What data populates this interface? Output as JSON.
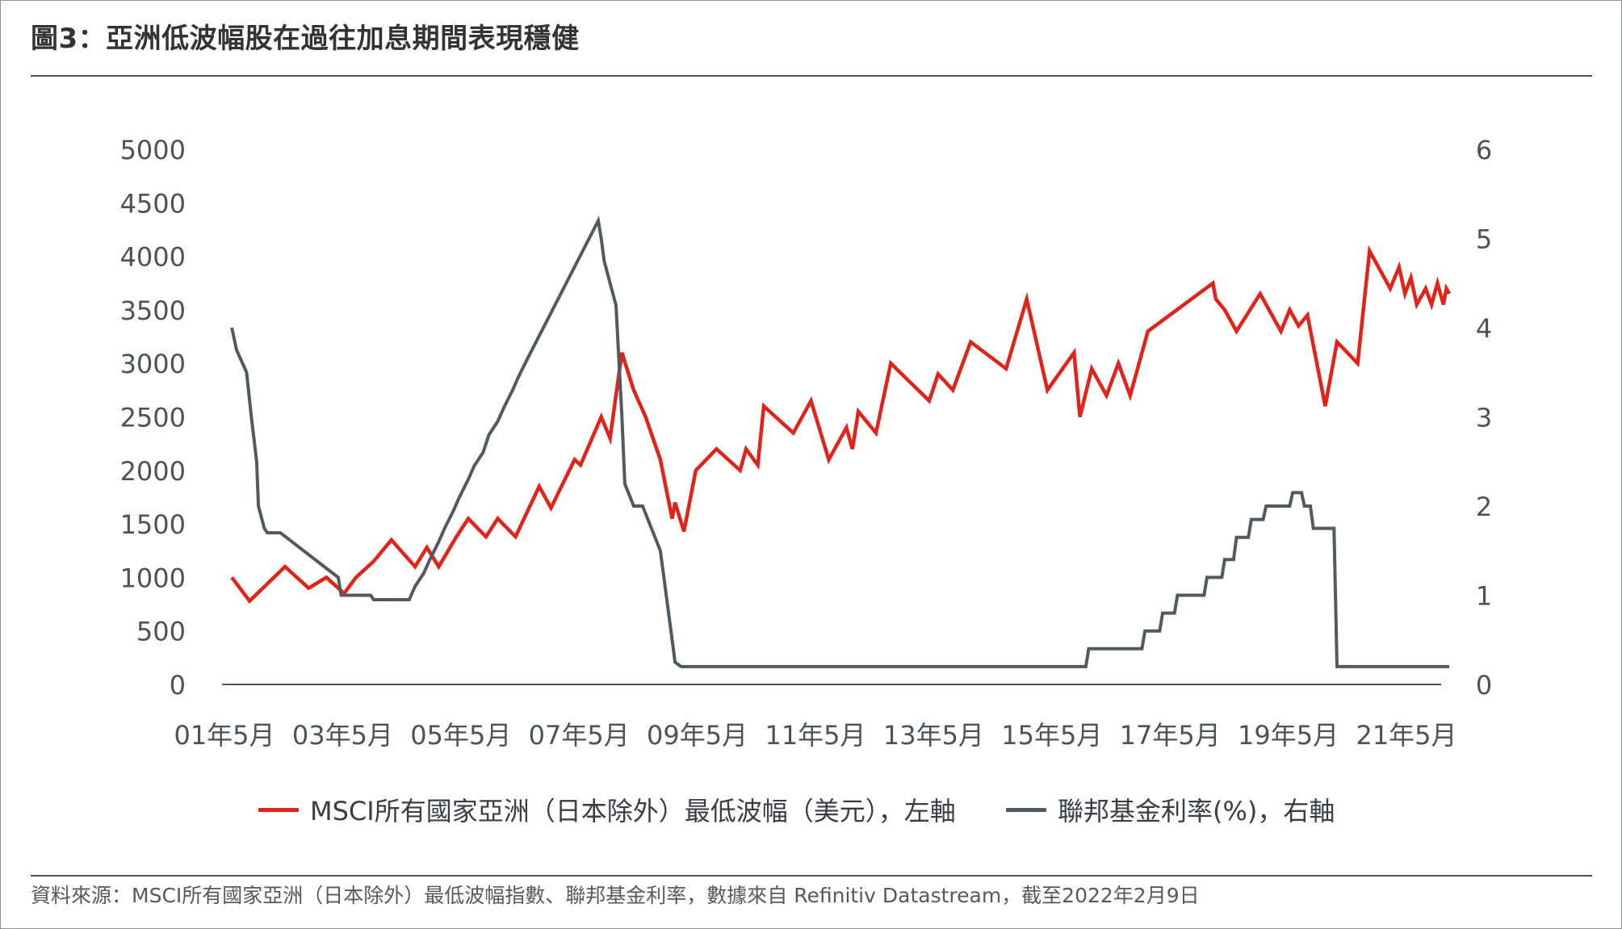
{
  "header": {
    "title": "圖3：亞洲低波幅股在過往加息期間表現穩健"
  },
  "colors": {
    "msci": "#e2231a",
    "fed": "#505a61",
    "axis": "#4d5256",
    "text": "#4d5256"
  },
  "legend": {
    "msci": "MSCI所有國家亞洲（日本除外）最低波幅（美元），左軸",
    "fed": "聯邦基金利率(%)，右軸"
  },
  "footer": {
    "source": "資料來源：MSCI所有國家亞洲（日本除外）最低波幅指數、聯邦基金利率，數據來自 Refinitiv Datastream，截至2022年2月9日"
  },
  "chart_data": {
    "type": "line",
    "title": "圖3：亞洲低波幅股在過往加息期間表現穩健",
    "xlabel": "",
    "ylabel_left": "",
    "ylabel_right": "",
    "x_tick_labels": [
      "01年5月",
      "03年5月",
      "05年5月",
      "07年5月",
      "09年5月",
      "11年5月",
      "13年5月",
      "15年5月",
      "17年5月",
      "19年5月",
      "21年5月"
    ],
    "x_tick_positions": [
      2001.375,
      2003.375,
      2005.375,
      2007.375,
      2009.375,
      2011.375,
      2013.375,
      2015.375,
      2017.375,
      2019.375,
      2021.375
    ],
    "xlim": [
      2001.5,
      2022.1
    ],
    "y_left_ticks": [
      "0",
      "500",
      "1000",
      "1500",
      "2000",
      "2500",
      "3000",
      "3500",
      "4000",
      "4500",
      "5000"
    ],
    "ylim_left": [
      0,
      5000
    ],
    "y_right_ticks": [
      "0",
      "1",
      "2",
      "3",
      "4",
      "5",
      "6"
    ],
    "ylim_right": [
      0,
      6
    ],
    "grid": false,
    "legend_position": "bottom",
    "series": [
      {
        "name": "MSCI所有國家亞洲（日本除外）最低波幅（美元），左軸",
        "axis": "left",
        "x": [
          2001.5,
          2001.8,
          2002.4,
          2002.8,
          2003.1,
          2003.4,
          2003.6,
          2003.9,
          2004.2,
          2004.6,
          2004.8,
          2005.0,
          2005.3,
          2005.5,
          2005.8,
          2006.0,
          2006.3,
          2006.7,
          2006.9,
          2007.3,
          2007.4,
          2007.75,
          2007.9,
          2008.1,
          2008.3,
          2008.5,
          2008.75,
          2008.95,
          2009.0,
          2009.15,
          2009.35,
          2009.7,
          2010.1,
          2010.2,
          2010.4,
          2010.5,
          2011.0,
          2011.3,
          2011.6,
          2011.9,
          2012.0,
          2012.1,
          2012.4,
          2012.65,
          2013.3,
          2013.45,
          2013.7,
          2014.0,
          2014.6,
          2014.95,
          2015.3,
          2015.75,
          2015.85,
          2016.05,
          2016.3,
          2016.5,
          2016.7,
          2017.0,
          2018.1,
          2018.15,
          2018.3,
          2018.5,
          2018.9,
          2019.25,
          2019.4,
          2019.55,
          2019.7,
          2020.0,
          2020.2,
          2020.55,
          2020.75,
          2021.1,
          2021.25,
          2021.35,
          2021.45,
          2021.55,
          2021.7,
          2021.8,
          2021.9,
          2022.0,
          2022.05,
          2022.1
        ],
        "y": [
          1000,
          780,
          1100,
          900,
          1000,
          850,
          1000,
          1150,
          1350,
          1100,
          1280,
          1100,
          1380,
          1550,
          1380,
          1550,
          1380,
          1850,
          1650,
          2100,
          2050,
          2500,
          2300,
          3100,
          2750,
          2500,
          2100,
          1550,
          1700,
          1430,
          2000,
          2200,
          2000,
          2200,
          2050,
          2600,
          2350,
          2650,
          2100,
          2400,
          2200,
          2550,
          2350,
          3000,
          2650,
          2900,
          2750,
          3200,
          2950,
          3600,
          2750,
          3100,
          2500,
          2950,
          2700,
          3000,
          2700,
          3300,
          3750,
          3600,
          3500,
          3300,
          3650,
          3300,
          3500,
          3350,
          3450,
          2600,
          3200,
          3000,
          4050,
          3700,
          3900,
          3650,
          3800,
          3550,
          3700,
          3550,
          3750,
          3550,
          3700,
          3650
        ]
      },
      {
        "name": "聯邦基金利率(%)，右軸",
        "axis": "right",
        "x": [
          2001.5,
          2001.58,
          2001.75,
          2001.83,
          2001.92,
          2001.95,
          2002.05,
          2002.1,
          2002.25,
          2002.32,
          2003.3,
          2003.35,
          2003.85,
          2003.9,
          2004.5,
          2004.6,
          2004.75,
          2004.85,
          2005.0,
          2005.1,
          2005.25,
          2005.35,
          2005.5,
          2005.6,
          2005.75,
          2005.85,
          2006.0,
          2006.1,
          2006.25,
          2006.35,
          2006.5,
          2007.7,
          2007.75,
          2007.8,
          2007.9,
          2008.0,
          2008.1,
          2008.15,
          2008.3,
          2008.45,
          2008.75,
          2008.85,
          2008.95,
          2009.0,
          2009.1,
          2009.15,
          2015.95,
          2016.0,
          2016.9,
          2016.95,
          2017.2,
          2017.25,
          2017.45,
          2017.5,
          2017.95,
          2018.0,
          2018.25,
          2018.3,
          2018.45,
          2018.5,
          2018.7,
          2018.75,
          2018.95,
          2019.0,
          2019.4,
          2019.45,
          2019.6,
          2019.65,
          2019.75,
          2019.8,
          2020.15,
          2020.2,
          2022.1
        ],
        "y": [
          4.0,
          3.75,
          3.5,
          3.0,
          2.5,
          2.0,
          1.75,
          1.7,
          1.7,
          1.7,
          1.2,
          1.0,
          1.0,
          0.95,
          0.95,
          1.1,
          1.25,
          1.4,
          1.6,
          1.75,
          1.95,
          2.1,
          2.3,
          2.45,
          2.6,
          2.8,
          2.95,
          3.1,
          3.3,
          3.45,
          3.65,
          5.2,
          5.0,
          4.75,
          4.5,
          4.25,
          3.0,
          2.25,
          2.0,
          2.0,
          1.5,
          1.0,
          0.5,
          0.25,
          0.2,
          0.2,
          0.2,
          0.4,
          0.4,
          0.6,
          0.6,
          0.8,
          0.8,
          1.0,
          1.0,
          1.2,
          1.2,
          1.4,
          1.4,
          1.65,
          1.65,
          1.85,
          1.85,
          2.0,
          2.0,
          2.15,
          2.15,
          2.0,
          2.0,
          1.75,
          1.75,
          0.2,
          0.2
        ]
      }
    ]
  }
}
